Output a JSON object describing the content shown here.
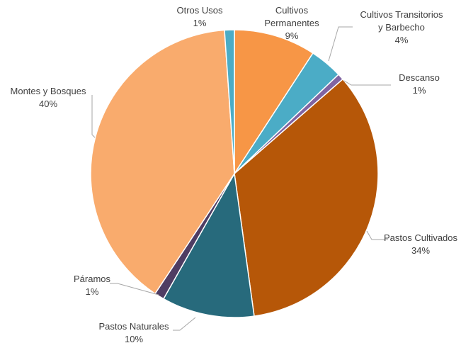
{
  "chart_data": {
    "type": "pie",
    "title": "",
    "legend": "none",
    "slices": [
      {
        "name": "Cultivos Permanentes",
        "lines": [
          "Cultivos",
          "Permanentes"
        ],
        "percent_label": "9%",
        "value": 9.2,
        "color": "#f79646"
      },
      {
        "name": "Cultivos Transitorios y Barbecho",
        "lines": [
          "Cultivos Transitorios",
          "y Barbecho"
        ],
        "percent_label": "4%",
        "value": 3.7,
        "color": "#4bacc6"
      },
      {
        "name": "Descanso",
        "lines": [
          "Descanso"
        ],
        "percent_label": "1%",
        "value": 0.7,
        "color": "#8064a2"
      },
      {
        "name": "Pastos Cultivados",
        "lines": [
          "Pastos Cultivados"
        ],
        "percent_label": "34%",
        "value": 34.2,
        "color": "#b65708"
      },
      {
        "name": "Pastos Naturales",
        "lines": [
          "Pastos Naturales"
        ],
        "percent_label": "10%",
        "value": 10.4,
        "color": "#276a7c"
      },
      {
        "name": "Páramos",
        "lines": [
          "Páramos"
        ],
        "percent_label": "1%",
        "value": 1.1,
        "color": "#4f3d63"
      },
      {
        "name": "Montes y Bosques",
        "lines": [
          "Montes y Bosques"
        ],
        "percent_label": "40%",
        "value": 39.6,
        "color": "#f9ab6d"
      },
      {
        "name": "Otros Usos",
        "lines": [
          "Otros Usos"
        ],
        "percent_label": "1%",
        "value": 1.1,
        "color": "#4bacc6"
      }
    ]
  }
}
